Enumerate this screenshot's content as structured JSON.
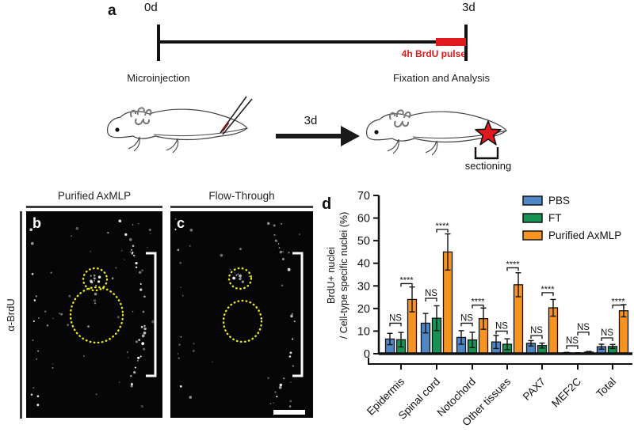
{
  "panel_a": {
    "label": "a",
    "timeline": {
      "start": "0d",
      "end": "3d",
      "pulse_label": "4h BrdU pulse"
    },
    "left_caption": "Microinjection",
    "right_caption": "Fixation and Analysis",
    "arrow_label": "3d",
    "sectioning_label": "sectioning"
  },
  "panel_bc": {
    "left_letter": "b",
    "right_letter": "c",
    "left_title": "Purified AxMLP",
    "right_title": "Flow-Through",
    "side_label": "α-BrdU",
    "annotation_color": "#ece71a"
  },
  "chart_data": {
    "type": "bar",
    "panel_label": "d",
    "ylabel_line1": "BrdU+ nuclei",
    "ylabel_line2": "/ Cell-type specific nuclei (%)",
    "ylim": [
      0,
      70
    ],
    "yticks": [
      0,
      10,
      20,
      30,
      40,
      50,
      60,
      70
    ],
    "grid": false,
    "legend_position": "top-right",
    "categories": [
      "Epidermis",
      "Spinal cord",
      "Notochord",
      "Other tissues",
      "PAX7",
      "MEF2C",
      "Total"
    ],
    "series": [
      {
        "name": "PBS",
        "color": "#4e86c6",
        "values": [
          6.5,
          13.5,
          7.2,
          5.2,
          4.6,
          0.4,
          3.1
        ],
        "errors": [
          2.5,
          4.3,
          3.0,
          2.9,
          1.2,
          0.2,
          1.1
        ]
      },
      {
        "name": "FT",
        "color": "#169254",
        "values": [
          6.2,
          15.7,
          6.1,
          4.2,
          3.6,
          0.3,
          3.2
        ],
        "errors": [
          3.2,
          5.5,
          3.4,
          2.4,
          1.1,
          0.15,
          0.9
        ]
      },
      {
        "name": "Purified AxMLP",
        "color": "#f79421",
        "values": [
          24.0,
          45.0,
          15.5,
          30.5,
          20.3,
          0.7,
          19.0
        ],
        "errors": [
          5.5,
          8.0,
          4.7,
          5.3,
          3.7,
          0.3,
          2.7
        ]
      }
    ],
    "significance": [
      {
        "between": [
          0,
          1
        ],
        "labels": [
          "NS",
          "NS",
          "NS",
          "NS",
          "NS",
          "NS",
          "NS"
        ],
        "y": [
          13.5,
          24.5,
          13.5,
          10,
          8,
          3.5,
          7
        ]
      },
      {
        "between": [
          1,
          2
        ],
        "labels": [
          "****",
          "****",
          "****",
          "****",
          "****",
          "NS",
          "****"
        ],
        "y": [
          31,
          55,
          21.5,
          38,
          27,
          9.5,
          21.5
        ]
      }
    ]
  }
}
